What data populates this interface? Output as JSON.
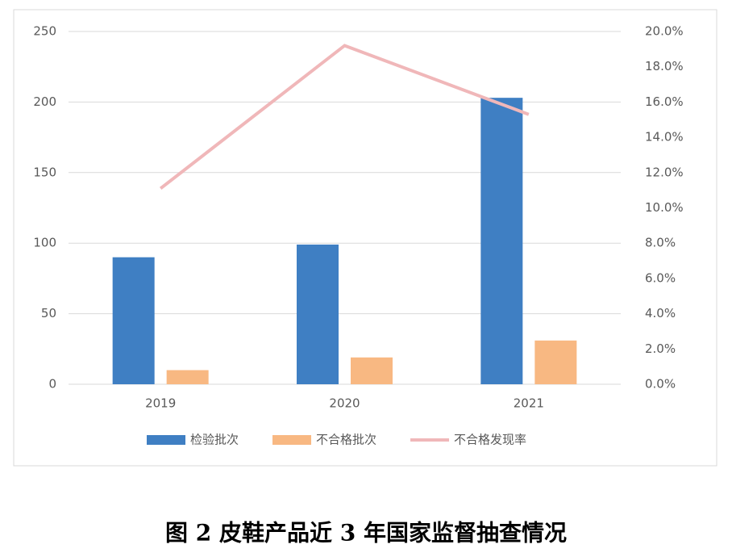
{
  "chart_data": {
    "type": "bar",
    "caption": "图 2  皮鞋产品近 3 年国家监督抽查情况",
    "categories": [
      "2019",
      "2020",
      "2021"
    ],
    "series": [
      {
        "name": "检验批次",
        "color": "#3f7fc3",
        "values": [
          90,
          99,
          203
        ]
      },
      {
        "name": "不合格批次",
        "color": "#f8b882",
        "values": [
          10,
          19,
          31
        ]
      },
      {
        "name": "不合格发现率",
        "color": "#f0b7b9",
        "type": "line",
        "axis": "y2",
        "values": [
          11.1,
          19.2,
          15.3
        ]
      }
    ],
    "ylim": [
      0,
      250
    ],
    "yticks": [
      0,
      50,
      100,
      150,
      200,
      250
    ],
    "y2lim": [
      0,
      20
    ],
    "y2ticks": [
      {
        "value": 0,
        "label": "0.0%"
      },
      {
        "value": 2,
        "label": "2.0%"
      },
      {
        "value": 4,
        "label": "4.0%"
      },
      {
        "value": 6,
        "label": "6.0%"
      },
      {
        "value": 8,
        "label": "8.0%"
      },
      {
        "value": 10,
        "label": "10.0%"
      },
      {
        "value": 12,
        "label": "12.0%"
      },
      {
        "value": 14,
        "label": "14.0%"
      },
      {
        "value": 16,
        "label": "16.0%"
      },
      {
        "value": 18,
        "label": "18.0%"
      },
      {
        "value": 20,
        "label": "20.0%"
      }
    ],
    "grid": true,
    "legend": "bottom"
  }
}
